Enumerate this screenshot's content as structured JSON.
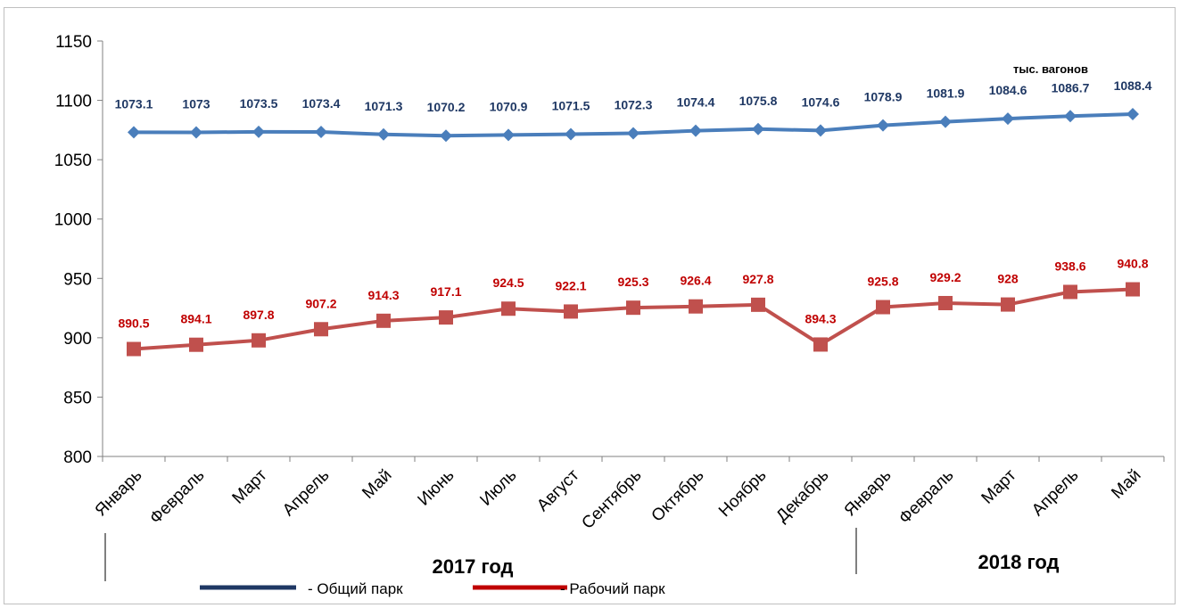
{
  "chart_data": {
    "type": "line",
    "unit_label": "тыс. вагонов",
    "categories": [
      "Январь",
      "Февраль",
      "Март",
      "Апрель",
      "Май",
      "Июнь",
      "Июль",
      "Август",
      "Сентябрь",
      "Октябрь",
      "Ноябрь",
      "Декабрь",
      "Январь",
      "Февраль",
      "Март",
      "Апрель",
      "Май"
    ],
    "year_labels": [
      "2017 год",
      "2018 год"
    ],
    "ylim": [
      800,
      1150
    ],
    "yticks": [
      800,
      850,
      900,
      950,
      1000,
      1050,
      1100,
      1150
    ],
    "grid": false,
    "legend_position": "bottom",
    "series": [
      {
        "name": "Общий парк",
        "legend_label": "- Общий парк",
        "color": "#4a7ebb",
        "line_color": "#1f3864",
        "label_color": "#1f3864",
        "marker": "diamond",
        "values": [
          1073.1,
          1073,
          1073.5,
          1073.4,
          1071.3,
          1070.2,
          1070.9,
          1071.5,
          1072.3,
          1074.4,
          1075.8,
          1074.6,
          1078.9,
          1081.9,
          1084.6,
          1086.7,
          1088.4
        ],
        "labels": [
          "1073.1",
          "1073",
          "1073.5",
          "1073.4",
          "1071.3",
          "1070.2",
          "1070.9",
          "1071.5",
          "1072.3",
          "1074.4",
          "1075.8",
          "1074.6",
          "1078.9",
          "1081.9",
          "1084.6",
          "1086.7",
          "1088.4"
        ]
      },
      {
        "name": "Рабочий парк",
        "legend_label": "- Рабочий парк",
        "color": "#c0504d",
        "line_color": "#c00000",
        "label_color": "#c00000",
        "marker": "square",
        "values": [
          890.5,
          894.1,
          897.8,
          907.2,
          914.3,
          917.1,
          924.5,
          922.1,
          925.3,
          926.4,
          927.8,
          894.3,
          925.8,
          929.2,
          928,
          938.6,
          940.8
        ],
        "labels": [
          "890.5",
          "894.1",
          "897.8",
          "907.2",
          "914.3",
          "917.1",
          "924.5",
          "922.1",
          "925.3",
          "926.4",
          "927.8",
          "894.3",
          "925.8",
          "929.2",
          "928",
          "938.6",
          "940.8"
        ]
      }
    ]
  }
}
